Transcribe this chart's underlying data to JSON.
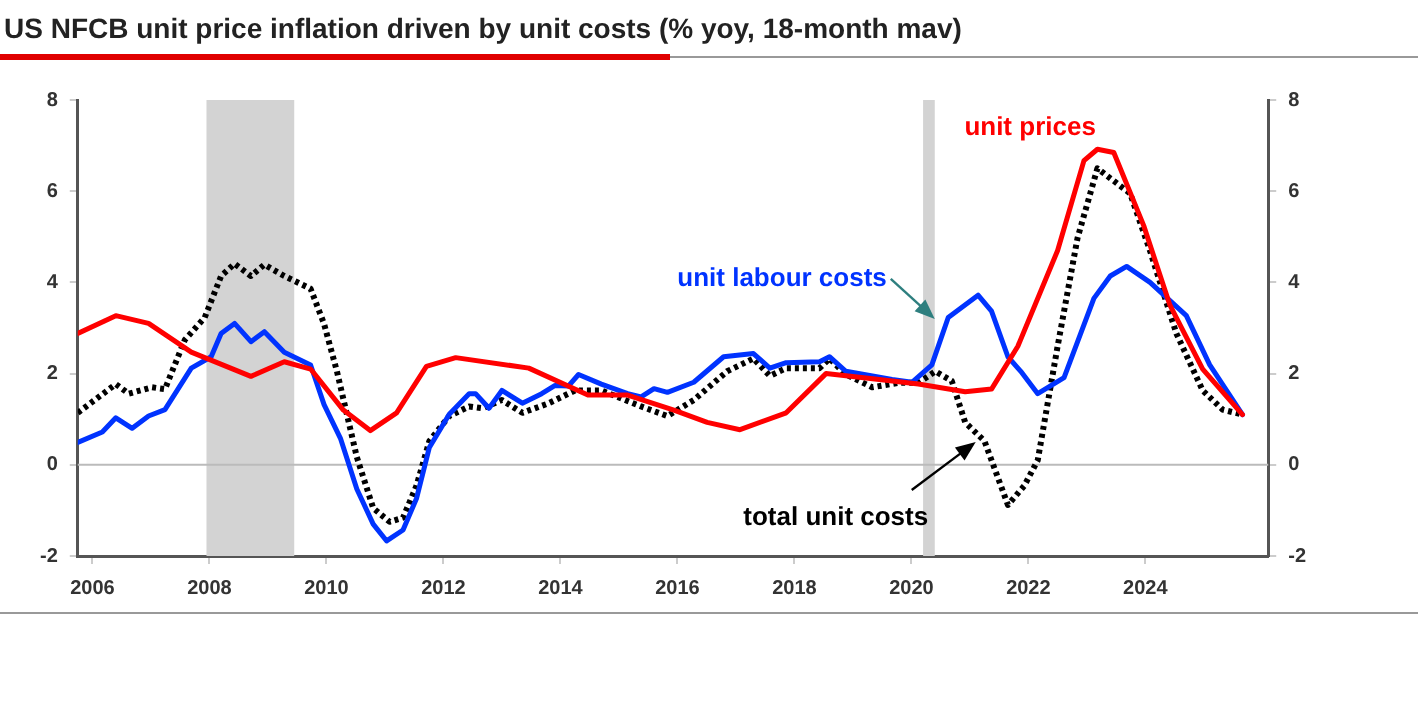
{
  "chart_data": {
    "type": "line",
    "title": "US NFCB unit price inflation driven by unit costs (% yoy, 18-month mav)",
    "xlim": [
      2005.75,
      2026.1
    ],
    "xticks": [
      2006,
      2008,
      2010,
      2012,
      2014,
      2016,
      2018,
      2020,
      2022,
      2024
    ],
    "ylim": [
      -2,
      8
    ],
    "yticks": [
      -2,
      0,
      2,
      4,
      6,
      8
    ],
    "y2lim": [
      -2,
      8
    ],
    "y2ticks": [
      -2,
      0,
      2,
      4,
      6,
      8
    ],
    "grid": false,
    "legend": false,
    "marker": "none",
    "series": [
      {
        "color": "#ff0000",
        "line_style": "solid",
        "x": [
          2005.75,
          2006.4,
          2006.96,
          2007.69,
          2008.71,
          2009.28,
          2009.73,
          2010.29,
          2010.75,
          2011.2,
          2011.71,
          2012.21,
          2013.46,
          2014.47,
          2015.15,
          2015.94,
          2016.51,
          2017.07,
          2017.86,
          2018.54,
          2019.45,
          2020.12,
          2020.92,
          2021.37,
          2021.82,
          2022.5,
          2022.95,
          2023.18,
          2023.46,
          2023.97,
          2024.42,
          2024.98,
          2025.66
        ],
        "values": [
          2.88,
          3.27,
          3.1,
          2.47,
          1.94,
          2.26,
          2.1,
          1.2,
          0.75,
          1.14,
          2.16,
          2.35,
          2.12,
          1.53,
          1.53,
          1.2,
          0.93,
          0.77,
          1.14,
          2.0,
          1.87,
          1.77,
          1.6,
          1.66,
          2.6,
          4.7,
          6.67,
          6.92,
          6.85,
          5.25,
          3.5,
          2.1,
          1.1
        ]
      },
      {
        "color": "#0033ff",
        "line_style": "solid",
        "x": [
          2005.75,
          2006.17,
          2006.4,
          2006.68,
          2006.96,
          2007.24,
          2007.69,
          2008.03,
          2008.2,
          2008.43,
          2008.71,
          2008.94,
          2009.28,
          2009.73,
          2009.96,
          2010.24,
          2010.52,
          2010.8,
          2011.03,
          2011.31,
          2011.54,
          2011.76,
          2012.1,
          2012.44,
          2012.55,
          2012.78,
          2013.0,
          2013.35,
          2013.68,
          2013.91,
          2014.14,
          2014.31,
          2014.7,
          2015.15,
          2015.38,
          2015.6,
          2015.83,
          2016.28,
          2016.79,
          2017.3,
          2017.58,
          2017.86,
          2018.43,
          2018.6,
          2018.88,
          2019.67,
          2020.01,
          2020.35,
          2020.63,
          2021.14,
          2021.37,
          2021.65,
          2021.87,
          2022.16,
          2022.61,
          2023.12,
          2023.4,
          2023.68,
          2024.08,
          2024.7,
          2025.1,
          2025.66
        ],
        "values": [
          0.49,
          0.72,
          1.03,
          0.8,
          1.07,
          1.21,
          2.12,
          2.37,
          2.88,
          3.1,
          2.7,
          2.92,
          2.47,
          2.19,
          1.32,
          0.58,
          -0.53,
          -1.3,
          -1.67,
          -1.43,
          -0.74,
          0.38,
          1.11,
          1.56,
          1.56,
          1.24,
          1.63,
          1.35,
          1.56,
          1.74,
          1.73,
          1.98,
          1.77,
          1.56,
          1.49,
          1.67,
          1.59,
          1.81,
          2.37,
          2.44,
          2.12,
          2.24,
          2.26,
          2.37,
          2.05,
          1.87,
          1.81,
          2.19,
          3.23,
          3.72,
          3.37,
          2.37,
          2.05,
          1.56,
          1.91,
          3.65,
          4.14,
          4.35,
          4.0,
          3.27,
          2.19,
          1.1
        ]
      },
      {
        "color": "#000000",
        "line_style": "dotted",
        "x": [
          2005.75,
          2006.4,
          2006.62,
          2007.02,
          2007.24,
          2007.58,
          2007.92,
          2008.2,
          2008.43,
          2008.71,
          2008.94,
          2009.28,
          2009.73,
          2009.96,
          2010.18,
          2010.52,
          2010.8,
          2011.08,
          2011.31,
          2011.54,
          2011.76,
          2012.1,
          2012.44,
          2012.67,
          2013.0,
          2013.35,
          2013.8,
          2014.25,
          2014.7,
          2015.38,
          2015.83,
          2016.28,
          2016.85,
          2017.3,
          2017.58,
          2017.86,
          2018.43,
          2018.6,
          2018.88,
          2019.33,
          2019.79,
          2020.12,
          2020.41,
          2020.69,
          2020.92,
          2021.25,
          2021.65,
          2021.93,
          2022.16,
          2022.5,
          2022.84,
          2023.18,
          2023.74,
          2024.08,
          2024.53,
          2024.98,
          2025.32,
          2025.66
        ],
        "values": [
          1.14,
          1.77,
          1.56,
          1.7,
          1.66,
          2.74,
          3.23,
          4.14,
          4.41,
          4.14,
          4.39,
          4.14,
          3.86,
          3.09,
          2.05,
          0.17,
          -0.95,
          -1.25,
          -1.16,
          -0.46,
          0.52,
          1.07,
          1.28,
          1.24,
          1.42,
          1.14,
          1.35,
          1.63,
          1.63,
          1.28,
          1.07,
          1.42,
          2.05,
          2.33,
          1.95,
          2.12,
          2.12,
          2.33,
          1.98,
          1.7,
          1.8,
          1.8,
          2.05,
          1.84,
          0.93,
          0.52,
          -0.88,
          -0.46,
          0.1,
          2.6,
          4.97,
          6.5,
          5.95,
          4.69,
          2.88,
          1.63,
          1.21,
          1.1
        ]
      }
    ],
    "ref_lines": [
      {
        "axis": "y",
        "value": 0,
        "color": "#bbbbbb"
      }
    ],
    "bands": [
      {
        "axis": "x",
        "from": 2007.95,
        "to": 2009.45,
        "color": "#d3d3d3"
      },
      {
        "axis": "x",
        "from": 2020.2,
        "to": 2020.4,
        "color": "#d3d3d3"
      }
    ],
    "annotations": [
      "unit prices",
      {
        "text": "unit labour costs",
        "x": 2020.4,
        "y": 3.2
      },
      {
        "text": "total unit costs",
        "x": 2021.1,
        "y": 0.5
      }
    ]
  }
}
